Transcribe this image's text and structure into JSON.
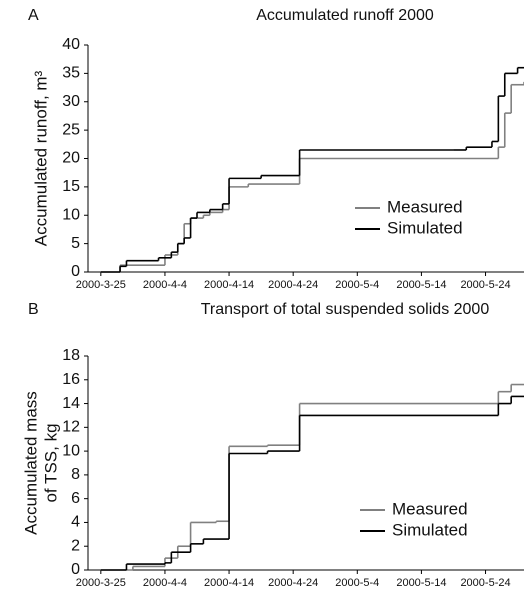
{
  "chart_data": [
    {
      "type": "step",
      "panel": "A",
      "title": "Accumulated runoff 2000",
      "ylabel": [
        "Accumulated runoff, m³"
      ],
      "xlim": [
        "2000-3-23",
        "2000-5-30"
      ],
      "xticks": [
        "2000-3-25",
        "2000-4-4",
        "2000-4-14",
        "2000-4-24",
        "2000-5-4",
        "2000-5-14",
        "2000-5-24"
      ],
      "ylim": [
        0,
        40
      ],
      "yticks": [
        0,
        5,
        10,
        15,
        20,
        25,
        30,
        35,
        40
      ],
      "series": [
        {
          "name": "Measured",
          "color": "#808080",
          "x": [
            "2000-3-25",
            "2000-3-28",
            "2000-4-4",
            "2000-4-6",
            "2000-4-7",
            "2000-4-8",
            "2000-4-10",
            "2000-4-11",
            "2000-4-13",
            "2000-4-14",
            "2000-4-17",
            "2000-4-25",
            "2000-5-26",
            "2000-5-27",
            "2000-5-28",
            "2000-5-30"
          ],
          "values": [
            0,
            1.2,
            3,
            5,
            8.5,
            9.5,
            10,
            10.5,
            11,
            15,
            15.5,
            20,
            22,
            28,
            33,
            33.5
          ]
        },
        {
          "name": "Simulated",
          "color": "#000000",
          "x": [
            "2000-3-25",
            "2000-3-28",
            "2000-3-29",
            "2000-4-3",
            "2000-4-5",
            "2000-4-6",
            "2000-4-7",
            "2000-4-8",
            "2000-4-9",
            "2000-4-11",
            "2000-4-13",
            "2000-4-14",
            "2000-4-19",
            "2000-4-25",
            "2000-5-19",
            "2000-5-21",
            "2000-5-25",
            "2000-5-26",
            "2000-5-27",
            "2000-5-29"
          ],
          "values": [
            0,
            1,
            2,
            2.5,
            3.5,
            5,
            6,
            9.5,
            10.5,
            11,
            12,
            16.5,
            17,
            21.5,
            21.5,
            22,
            23,
            31,
            35,
            36
          ]
        }
      ]
    },
    {
      "type": "step",
      "panel": "B",
      "title": "Transport of total suspended solids 2000",
      "ylabel": [
        "Accumulated mass",
        "of TSS, kg"
      ],
      "xlim": [
        "2000-3-23",
        "2000-5-30"
      ],
      "xticks": [
        "2000-3-25",
        "2000-4-4",
        "2000-4-14",
        "2000-4-24",
        "2000-5-4",
        "2000-5-14",
        "2000-5-24"
      ],
      "ylim": [
        0,
        18
      ],
      "yticks": [
        0,
        2,
        4,
        6,
        8,
        10,
        12,
        14,
        16,
        18
      ],
      "series": [
        {
          "name": "Measured",
          "color": "#808080",
          "x": [
            "2000-3-25",
            "2000-3-30",
            "2000-4-4",
            "2000-4-6",
            "2000-4-8",
            "2000-4-12",
            "2000-4-14",
            "2000-4-20",
            "2000-4-25",
            "2000-5-26",
            "2000-5-28"
          ],
          "values": [
            0,
            0.3,
            1,
            2,
            4,
            4.1,
            10.4,
            10.5,
            14,
            15,
            15.6
          ]
        },
        {
          "name": "Simulated",
          "color": "#000000",
          "x": [
            "2000-3-25",
            "2000-3-29",
            "2000-4-4",
            "2000-4-5",
            "2000-4-8",
            "2000-4-10",
            "2000-4-14",
            "2000-4-20",
            "2000-4-25",
            "2000-5-26",
            "2000-5-28"
          ],
          "values": [
            0,
            0.5,
            0.6,
            1.5,
            2.2,
            2.6,
            9.8,
            10,
            13,
            14,
            14.6
          ]
        }
      ]
    }
  ]
}
